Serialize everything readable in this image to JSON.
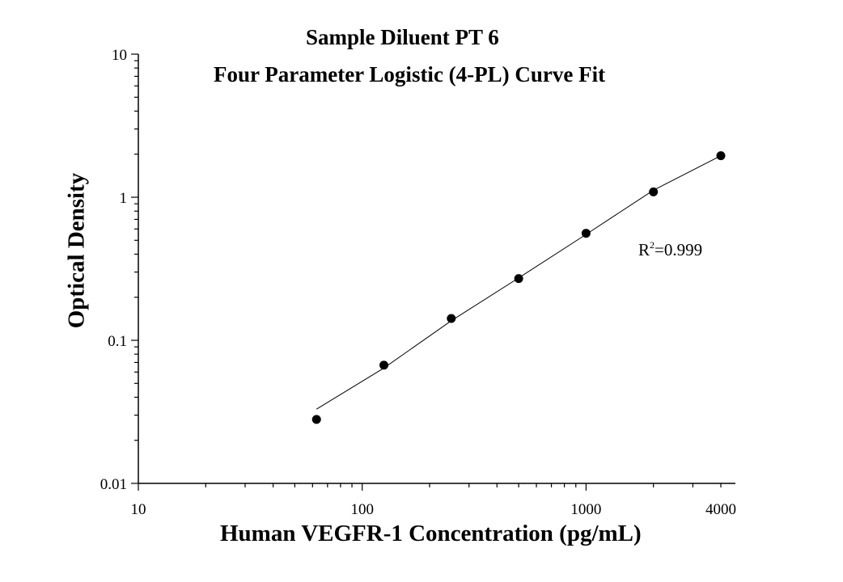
{
  "chart_data": {
    "type": "scatter",
    "title": "Sample Diluent PT 6",
    "subtitle": "Four Parameter Logistic (4-PL) Curve Fit",
    "xlabel": "Human VEGFR-1 Concentration (pg/mL)",
    "ylabel": "Optical Density",
    "x_scale": "log",
    "y_scale": "log",
    "xlim": [
      10,
      4000
    ],
    "ylim": [
      0.01,
      10
    ],
    "x_ticks": [
      10,
      100,
      1000,
      4000
    ],
    "x_tick_labels": [
      "10",
      "100",
      "1000",
      "4000"
    ],
    "y_ticks": [
      0.01,
      0.1,
      1,
      10
    ],
    "y_tick_labels": [
      "0.01",
      "0.1",
      "1",
      "10"
    ],
    "grid": false,
    "series": [
      {
        "x": [
          62.5,
          125,
          250,
          500,
          1000,
          2000,
          4000
        ],
        "y": [
          0.028,
          0.067,
          0.142,
          0.27,
          0.56,
          1.09,
          1.95
        ]
      }
    ],
    "fit_curve": {
      "x": [
        62.5,
        125,
        250,
        500,
        1000,
        2000,
        4000
      ],
      "y": [
        0.033,
        0.064,
        0.137,
        0.273,
        0.55,
        1.12,
        1.95
      ]
    },
    "annotation": {
      "r_label": "R",
      "r_superscript": "2",
      "r_value": "=0.999"
    }
  }
}
